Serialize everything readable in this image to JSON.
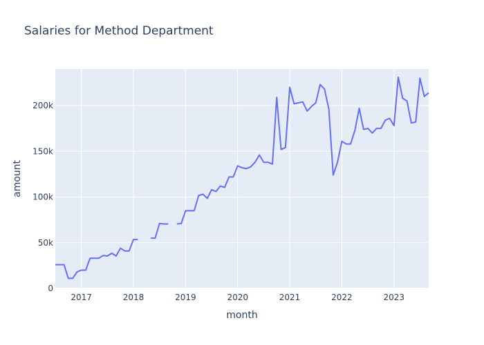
{
  "chart_data": {
    "type": "line",
    "title": "Salaries for Method Department",
    "xlabel": "month",
    "ylabel": "amount",
    "xlim": [
      "2016-07",
      "2023-09"
    ],
    "ylim": [
      0,
      240000
    ],
    "grid": true,
    "legend": "none",
    "colors": {
      "plot_bg": "#e5ecf6",
      "grid": "#ffffff",
      "line": "#636efa",
      "text": "#2a3f5f"
    },
    "x_ticks": [
      {
        "value": "2017-01",
        "label": "2017"
      },
      {
        "value": "2018-01",
        "label": "2018"
      },
      {
        "value": "2019-01",
        "label": "2019"
      },
      {
        "value": "2020-01",
        "label": "2020"
      },
      {
        "value": "2021-01",
        "label": "2021"
      },
      {
        "value": "2022-01",
        "label": "2022"
      },
      {
        "value": "2023-01",
        "label": "2023"
      }
    ],
    "y_ticks": [
      {
        "value": 0,
        "label": "0"
      },
      {
        "value": 50000,
        "label": "50k"
      },
      {
        "value": 100000,
        "label": "100k"
      },
      {
        "value": 150000,
        "label": "150k"
      },
      {
        "value": 200000,
        "label": "200k"
      }
    ],
    "series": [
      {
        "x": [
          "2016-07",
          "2016-08",
          "2016-09",
          "2016-10",
          "2016-11",
          "2016-12",
          "2017-01",
          "2017-02",
          "2017-03",
          "2017-04",
          "2017-05",
          "2017-06",
          "2017-07",
          "2017-08",
          "2017-09",
          "2017-10",
          "2017-11",
          "2017-12",
          "2018-01",
          "2018-02",
          "2018-03",
          "2018-04",
          "2018-05",
          "2018-06",
          "2018-07",
          "2018-08",
          "2018-09",
          "2018-10",
          "2018-11",
          "2018-12",
          "2019-01",
          "2019-02",
          "2019-03",
          "2019-04",
          "2019-05",
          "2019-06",
          "2019-07",
          "2019-08",
          "2019-09",
          "2019-10",
          "2019-11",
          "2019-12",
          "2020-01",
          "2020-02",
          "2020-03",
          "2020-04",
          "2020-05",
          "2020-06",
          "2020-07",
          "2020-08",
          "2020-09",
          "2020-10",
          "2020-11",
          "2020-12",
          "2021-01",
          "2021-02",
          "2021-03",
          "2021-04",
          "2021-05",
          "2021-06",
          "2021-07",
          "2021-08",
          "2021-09",
          "2021-10",
          "2021-11",
          "2021-12",
          "2022-01",
          "2022-02",
          "2022-03",
          "2022-04",
          "2022-05",
          "2022-06",
          "2022-07",
          "2022-08",
          "2022-09",
          "2022-10",
          "2022-11",
          "2022-12",
          "2023-01",
          "2023-02",
          "2023-03",
          "2023-04",
          "2023-05",
          "2023-06",
          "2023-07",
          "2023-08",
          "2023-09"
        ],
        "y": [
          26000,
          26000,
          26000,
          11000,
          11000,
          18000,
          20000,
          20000,
          33000,
          33000,
          33000,
          36000,
          35500,
          38500,
          35500,
          44000,
          41000,
          41000,
          53500,
          53500,
          null,
          null,
          55000,
          55000,
          71000,
          70500,
          70500,
          null,
          70500,
          71000,
          85000,
          85000,
          85000,
          101500,
          103000,
          98500,
          108000,
          106000,
          112000,
          110500,
          122000,
          122000,
          134000,
          132000,
          131000,
          133000,
          138000,
          146000,
          138000,
          138000,
          136000,
          209000,
          152000,
          154000,
          220000,
          202000,
          203000,
          204000,
          194000,
          199000,
          203000,
          223000,
          218000,
          196000,
          124000,
          138000,
          161000,
          158000,
          158000,
          173000,
          197000,
          174000,
          175000,
          170000,
          175000,
          175000,
          184000,
          186000,
          178000,
          231000,
          208000,
          205000,
          181000,
          182000,
          230000,
          210000,
          214000
        ]
      }
    ]
  }
}
